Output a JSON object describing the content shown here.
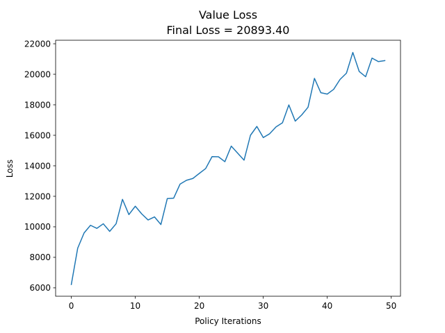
{
  "chart_data": {
    "type": "line",
    "title": "Value Loss",
    "subtitle": "Final Loss = 20893.40",
    "xlabel": "Policy Iterations",
    "ylabel": "Loss",
    "xlim": [
      -2.45,
      51.45
    ],
    "ylim": [
      5450,
      22230
    ],
    "xticks": [
      0,
      10,
      20,
      30,
      40,
      50
    ],
    "yticks": [
      6000,
      8000,
      10000,
      12000,
      14000,
      16000,
      18000,
      20000,
      22000
    ],
    "grid": false,
    "line_color": "#1f77b4",
    "series": [
      {
        "x": [
          0,
          1,
          2,
          3,
          4,
          5,
          6,
          7,
          8,
          9,
          10,
          11,
          12,
          13,
          14,
          15,
          16,
          17,
          18,
          19,
          20,
          21,
          22,
          23,
          24,
          25,
          26,
          27,
          28,
          29,
          30,
          31,
          32,
          33,
          34,
          35,
          36,
          37,
          38,
          39,
          40,
          41,
          42,
          43,
          44,
          45,
          46,
          47,
          48,
          49
        ],
        "values": [
          6220,
          8600,
          9600,
          10100,
          9900,
          10200,
          9700,
          10200,
          11800,
          10800,
          11350,
          10850,
          10450,
          10650,
          10150,
          11850,
          11880,
          12800,
          13050,
          13170,
          13500,
          13820,
          14600,
          14590,
          14270,
          15290,
          14830,
          14370,
          16000,
          16580,
          15850,
          16100,
          16550,
          16820,
          17990,
          16930,
          17330,
          17840,
          19730,
          18790,
          18700,
          19010,
          19660,
          20070,
          21430,
          20180,
          19840,
          21060,
          20830,
          20893.4
        ]
      }
    ]
  }
}
